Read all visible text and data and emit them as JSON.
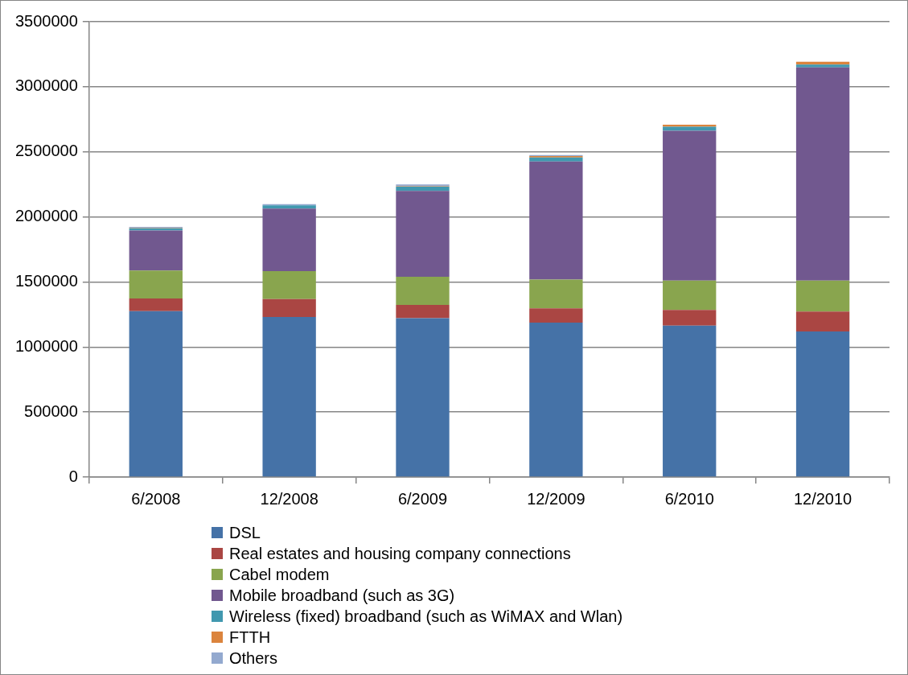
{
  "chart_data": {
    "type": "bar",
    "stacked": true,
    "categories": [
      "6/2008",
      "12/2008",
      "6/2009",
      "12/2009",
      "6/2010",
      "12/2010"
    ],
    "series": [
      {
        "name": "DSL",
        "color": "#4572a7",
        "values": [
          1275000,
          1231000,
          1221000,
          1188000,
          1164000,
          1119000
        ]
      },
      {
        "name": "Real estates and housing company connections",
        "color": "#aa4643",
        "values": [
          98000,
          137000,
          102000,
          109000,
          120000,
          153000
        ]
      },
      {
        "name": "Cabel modem",
        "color": "#89a54e",
        "values": [
          214000,
          215000,
          217000,
          221000,
          227000,
          239000
        ]
      },
      {
        "name": "Mobile broadband (such as 3G)",
        "color": "#71588f",
        "values": [
          308000,
          481000,
          660000,
          907000,
          1151000,
          1638000
        ]
      },
      {
        "name": "Wireless (fixed) broadband (such as WiMAX and Wlan)",
        "color": "#4198af",
        "values": [
          18000,
          24000,
          33000,
          32000,
          31000,
          22000
        ]
      },
      {
        "name": "FTTH",
        "color": "#db843d",
        "values": [
          2000,
          null,
          3000,
          11000,
          15000,
          21000
        ]
      },
      {
        "name": "Others",
        "color": "#93a9cf",
        "values": [
          8000,
          10000,
          13000,
          7000,
          null,
          null
        ]
      }
    ],
    "ylim": [
      0,
      3500000
    ],
    "yticks": [
      0,
      500000,
      1000000,
      1500000,
      2000000,
      2500000,
      3000000,
      3500000
    ],
    "grid": "y",
    "legend": "bottom"
  }
}
